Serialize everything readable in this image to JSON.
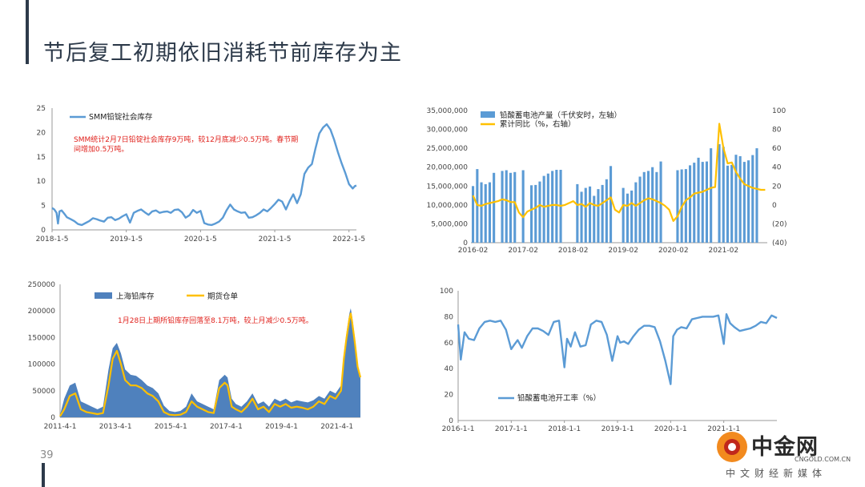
{
  "page": {
    "title": "节后复工初期依旧消耗节前库存为主",
    "page_number": "39",
    "accent_color": "#2d3a4a"
  },
  "watermark": {
    "brand": "中金网",
    "url": "CNGOLD.COM.CN",
    "subtitle": "中文财经新媒体",
    "icon": "cngold-logo-icon"
  },
  "charts": {
    "social_stock": {
      "legend": "SMM铅锭社会库存",
      "annotation": [
        "SMM统计2月7日铅锭社会库存9万吨，较12月底减少0.5万吨。春节期",
        "间增加0.5万吨。"
      ]
    },
    "battery": {
      "legend_bar": "铅酸蓄电池产量（千伏安时，左轴）",
      "legend_line": "累计同比（%，右轴）"
    },
    "shfe_stock": {
      "legend_area": "上海铅库存",
      "legend_line": "期货仓单",
      "annotation": "1月28日上期所铅库存回落至8.1万吨，较上月减少0.5万吨。"
    },
    "utilization": {
      "legend": "铅酸蓄电池开工率（%）"
    }
  },
  "chart_data": [
    {
      "type": "line",
      "color": "#5b9bd5",
      "ylim": [
        0,
        25
      ],
      "y_ticks": [
        0,
        5,
        10,
        15,
        20,
        25
      ],
      "x_tick_labels": [
        "2018-1-5",
        "2019-1-5",
        "2020-1-5",
        "2021-1-5",
        "2022-1-5"
      ],
      "xlim": [
        2018.0,
        2022.1
      ],
      "series": [
        {
          "name": "SMM铅锭社会库存",
          "x": [
            2018.0,
            2018.03,
            2018.06,
            2018.08,
            2018.1,
            2018.13,
            2018.17,
            2018.2,
            2018.25,
            2018.3,
            2018.35,
            2018.4,
            2018.45,
            2018.5,
            2018.55,
            2018.6,
            2018.65,
            2018.7,
            2018.75,
            2018.8,
            2018.85,
            2018.9,
            2018.95,
            2019.0,
            2019.05,
            2019.1,
            2019.15,
            2019.2,
            2019.25,
            2019.3,
            2019.35,
            2019.4,
            2019.45,
            2019.5,
            2019.55,
            2019.6,
            2019.65,
            2019.7,
            2019.75,
            2019.8,
            2019.85,
            2019.9,
            2019.95,
            2020.0,
            2020.05,
            2020.1,
            2020.15,
            2020.2,
            2020.25,
            2020.3,
            2020.35,
            2020.4,
            2020.45,
            2020.5,
            2020.55,
            2020.6,
            2020.65,
            2020.7,
            2020.75,
            2020.8,
            2020.85,
            2020.9,
            2020.95,
            2021.0,
            2021.05,
            2021.1,
            2021.15,
            2021.2,
            2021.25,
            2021.3,
            2021.35,
            2021.4,
            2021.45,
            2021.5,
            2021.55,
            2021.6,
            2021.65,
            2021.7,
            2021.75,
            2021.8,
            2021.85,
            2021.9,
            2021.95,
            2022.0,
            2022.05,
            2022.08,
            2022.1
          ],
          "values": [
            4.5,
            4.2,
            3.5,
            1.3,
            3.8,
            4.0,
            3.2,
            2.6,
            2.2,
            1.8,
            1.2,
            1.0,
            1.4,
            1.8,
            2.4,
            2.2,
            1.9,
            1.7,
            2.5,
            2.6,
            2.0,
            2.3,
            2.8,
            3.2,
            1.5,
            3.5,
            3.9,
            4.2,
            3.6,
            3.1,
            3.8,
            4.0,
            3.5,
            3.7,
            3.8,
            3.5,
            4.1,
            4.2,
            3.6,
            2.5,
            3.0,
            4.1,
            3.5,
            3.9,
            1.4,
            1.1,
            1.0,
            1.3,
            1.7,
            2.5,
            4.0,
            5.2,
            4.2,
            3.8,
            3.5,
            3.6,
            2.5,
            2.6,
            3.0,
            3.5,
            4.2,
            3.8,
            4.5,
            5.3,
            6.2,
            5.8,
            4.2,
            5.9,
            7.3,
            5.5,
            7.3,
            11.5,
            12.8,
            13.5,
            16.8,
            19.8,
            21.0,
            21.7,
            20.6,
            18.5,
            16.0,
            13.7,
            11.7,
            9.4,
            8.5,
            9.0,
            9.1
          ]
        }
      ]
    },
    {
      "type": "bar",
      "bar_color": "#5b9bd5",
      "line_color": "#ffc000",
      "ylim": [
        0,
        35000000
      ],
      "y_ticks": [
        0,
        5000000,
        10000000,
        15000000,
        20000000,
        25000000,
        30000000,
        35000000
      ],
      "y_tick_labels": [
        "0",
        "5,000,000",
        "10,000,000",
        "15,000,000",
        "20,000,000",
        "25,000,000",
        "30,000,000",
        "35,000,000"
      ],
      "y2lim": [
        -40,
        100
      ],
      "y2_ticks": [
        -40,
        -20,
        0,
        20,
        40,
        60,
        80,
        100
      ],
      "y2_tick_labels": [
        "(40)",
        "(20)",
        "0",
        "20",
        "40",
        "60",
        "80",
        "100"
      ],
      "x_tick_labels": [
        "2016-02",
        "2017-02",
        "2018-02",
        "2019-02",
        "2020-02",
        "2021-02"
      ],
      "categories": [
        "2016-02",
        "2016-03",
        "2016-04",
        "2016-05",
        "2016-06",
        "2016-07",
        "2016-08",
        "2016-09",
        "2016-10",
        "2016-11",
        "2016-12",
        "2017-01",
        "2017-02",
        "2017-03",
        "2017-04",
        "2017-05",
        "2017-06",
        "2017-07",
        "2017-08",
        "2017-09",
        "2017-10",
        "2017-11",
        "2017-12",
        "2018-01",
        "2018-02",
        "2018-03",
        "2018-04",
        "2018-05",
        "2018-06",
        "2018-07",
        "2018-08",
        "2018-09",
        "2018-10",
        "2018-11",
        "2018-12",
        "2019-01",
        "2019-02",
        "2019-03",
        "2019-04",
        "2019-05",
        "2019-06",
        "2019-07",
        "2019-08",
        "2019-09",
        "2019-10",
        "2019-11",
        "2019-12",
        "2020-01",
        "2020-02",
        "2020-03",
        "2020-04",
        "2020-05",
        "2020-06",
        "2020-07",
        "2020-08",
        "2020-09",
        "2020-10",
        "2020-11",
        "2020-12",
        "2021-01",
        "2021-02",
        "2021-03",
        "2021-04",
        "2021-05",
        "2021-06",
        "2021-07",
        "2021-08",
        "2021-09",
        "2021-10",
        "2021-11",
        "2021-12"
      ],
      "series": [
        {
          "name": "铅酸蓄电池产量（千伏安时，左轴）",
          "axis": "left",
          "values": [
            15000000,
            19500000,
            16000000,
            15500000,
            16000000,
            18500000,
            null,
            19000000,
            19200000,
            18500000,
            18700000,
            null,
            19200000,
            null,
            15200000,
            15300000,
            16200000,
            17700000,
            18300000,
            19000000,
            19300000,
            19300000,
            null,
            null,
            null,
            15500000,
            13500000,
            14500000,
            14900000,
            12400000,
            14200000,
            15300000,
            16800000,
            20300000,
            null,
            null,
            14500000,
            13000000,
            13800000,
            16000000,
            17500000,
            18700000,
            19000000,
            20000000,
            18700000,
            21500000,
            null,
            null,
            null,
            19200000,
            19400000,
            19500000,
            20500000,
            21200000,
            22500000,
            21400000,
            21500000,
            25000000,
            null,
            26100000,
            25400000,
            20400000,
            20600000,
            23300000,
            22900000,
            21400000,
            21800000,
            23200000,
            25000000,
            null,
            null
          ]
        },
        {
          "name": "累计同比（%，右轴）",
          "axis": "right",
          "values": [
            10,
            0,
            -1,
            1,
            2,
            3,
            4,
            6,
            5,
            3,
            3,
            -8,
            -13,
            -7,
            -5,
            -3,
            0,
            -2,
            -1,
            0,
            0,
            -1,
            0,
            2,
            4,
            0,
            1,
            -2,
            2,
            0,
            -1,
            2,
            5,
            8,
            -5,
            -8,
            0,
            -1,
            2,
            -1,
            2,
            5,
            7,
            6,
            4,
            2,
            -1,
            -5,
            -17,
            -12,
            -2,
            5,
            8,
            12,
            13,
            14,
            16,
            18,
            19,
            86,
            60,
            44,
            45,
            35,
            28,
            22,
            20,
            18,
            17,
            16,
            16
          ]
        }
      ]
    },
    {
      "type": "area",
      "area_color": "#4f81bd",
      "line_color": "#ffc000",
      "ylim": [
        0,
        250000
      ],
      "y_ticks": [
        0,
        50000,
        100000,
        150000,
        200000,
        250000
      ],
      "x_tick_labels": [
        "2011-4-1",
        "2013-4-1",
        "2015-4-1",
        "2017-4-1",
        "2019-4-1",
        "2021-4-1"
      ],
      "xlim": [
        2011.25,
        2022.1
      ],
      "series": [
        {
          "name": "上海铅库存",
          "x": [
            2011.25,
            2011.4,
            2011.6,
            2011.8,
            2012.0,
            2012.2,
            2012.4,
            2012.6,
            2012.8,
            2013.0,
            2013.15,
            2013.3,
            2013.45,
            2013.6,
            2013.8,
            2014.0,
            2014.2,
            2014.4,
            2014.6,
            2014.8,
            2015.0,
            2015.2,
            2015.4,
            2015.6,
            2015.8,
            2016.0,
            2016.2,
            2016.4,
            2016.6,
            2016.8,
            2017.0,
            2017.2,
            2017.3,
            2017.45,
            2017.6,
            2017.8,
            2018.0,
            2018.2,
            2018.4,
            2018.6,
            2018.8,
            2019.0,
            2019.2,
            2019.4,
            2019.6,
            2019.8,
            2020.0,
            2020.2,
            2020.4,
            2020.6,
            2020.8,
            2021.0,
            2021.2,
            2021.4,
            2021.5,
            2021.6,
            2021.7,
            2021.75,
            2021.8,
            2021.9,
            2022.0,
            2022.1
          ],
          "values": [
            5000,
            35000,
            60000,
            65000,
            30000,
            25000,
            20000,
            15000,
            20000,
            90000,
            130000,
            140000,
            120000,
            90000,
            80000,
            78000,
            70000,
            60000,
            55000,
            45000,
            22000,
            12000,
            10000,
            12000,
            20000,
            45000,
            30000,
            25000,
            20000,
            15000,
            70000,
            80000,
            75000,
            35000,
            25000,
            20000,
            30000,
            45000,
            25000,
            30000,
            20000,
            35000,
            30000,
            35000,
            28000,
            32000,
            30000,
            28000,
            32000,
            40000,
            35000,
            50000,
            45000,
            60000,
            120000,
            160000,
            195000,
            205000,
            190000,
            150000,
            100000,
            80000
          ]
        },
        {
          "name": "期货仓单",
          "x": [
            2011.25,
            2011.4,
            2011.6,
            2011.8,
            2012.0,
            2012.2,
            2012.4,
            2012.6,
            2012.8,
            2013.0,
            2013.15,
            2013.3,
            2013.45,
            2013.6,
            2013.8,
            2014.0,
            2014.2,
            2014.4,
            2014.6,
            2014.8,
            2015.0,
            2015.2,
            2015.4,
            2015.6,
            2015.8,
            2016.0,
            2016.2,
            2016.4,
            2016.6,
            2016.8,
            2017.0,
            2017.2,
            2017.3,
            2017.45,
            2017.6,
            2017.8,
            2018.0,
            2018.2,
            2018.4,
            2018.6,
            2018.8,
            2019.0,
            2019.2,
            2019.4,
            2019.6,
            2019.8,
            2020.0,
            2020.2,
            2020.4,
            2020.6,
            2020.8,
            2021.0,
            2021.2,
            2021.4,
            2021.5,
            2021.6,
            2021.7,
            2021.75,
            2021.8,
            2021.9,
            2022.0,
            2022.1
          ],
          "values": [
            2000,
            15000,
            40000,
            45000,
            15000,
            10000,
            8000,
            6000,
            8000,
            60000,
            110000,
            125000,
            100000,
            70000,
            60000,
            60000,
            55000,
            45000,
            40000,
            30000,
            10000,
            5000,
            4000,
            5000,
            10000,
            30000,
            20000,
            15000,
            10000,
            8000,
            55000,
            65000,
            60000,
            20000,
            15000,
            10000,
            20000,
            35000,
            15000,
            20000,
            10000,
            25000,
            20000,
            25000,
            18000,
            20000,
            18000,
            15000,
            20000,
            30000,
            25000,
            40000,
            35000,
            50000,
            110000,
            150000,
            185000,
            195000,
            180000,
            140000,
            95000,
            75000
          ]
        }
      ]
    },
    {
      "type": "line",
      "color": "#5b9bd5",
      "ylim": [
        0,
        100
      ],
      "y_ticks": [
        0,
        20,
        40,
        60,
        80,
        100
      ],
      "x_tick_labels": [
        "2016-1-1",
        "2017-1-1",
        "2018-1-1",
        "2019-1-1",
        "2020-1-1",
        "2021-1-1"
      ],
      "xlim": [
        2016.0,
        2022.0
      ],
      "series": [
        {
          "name": "铅酸蓄电池开工率（%）",
          "x": [
            2016.0,
            2016.05,
            2016.12,
            2016.2,
            2016.3,
            2016.4,
            2016.5,
            2016.6,
            2016.7,
            2016.8,
            2016.9,
            2017.0,
            2017.05,
            2017.12,
            2017.2,
            2017.3,
            2017.4,
            2017.5,
            2017.6,
            2017.7,
            2017.8,
            2017.9,
            2018.0,
            2018.05,
            2018.12,
            2018.2,
            2018.3,
            2018.4,
            2018.5,
            2018.6,
            2018.7,
            2018.8,
            2018.9,
            2019.0,
            2019.05,
            2019.12,
            2019.2,
            2019.3,
            2019.4,
            2019.5,
            2019.6,
            2019.7,
            2019.8,
            2019.9,
            2020.0,
            2020.05,
            2020.12,
            2020.2,
            2020.3,
            2020.4,
            2020.5,
            2020.6,
            2020.7,
            2020.8,
            2020.9,
            2021.0,
            2021.05,
            2021.12,
            2021.2,
            2021.3,
            2021.4,
            2021.5,
            2021.6,
            2021.7,
            2021.8,
            2021.9,
            2022.0
          ],
          "values": [
            74,
            47,
            68,
            63,
            62,
            71,
            76,
            77,
            76,
            77,
            70,
            55,
            58,
            62,
            56,
            65,
            71,
            71,
            69,
            66,
            76,
            77,
            41,
            63,
            57,
            68,
            57,
            58,
            74,
            77,
            76,
            66,
            46,
            65,
            60,
            61,
            59,
            65,
            70,
            73,
            73,
            72,
            61,
            46,
            28,
            65,
            70,
            72,
            71,
            78,
            79,
            80,
            80,
            80,
            81,
            59,
            82,
            75,
            72,
            69,
            70,
            71,
            73,
            76,
            75,
            81,
            79
          ]
        }
      ]
    }
  ]
}
